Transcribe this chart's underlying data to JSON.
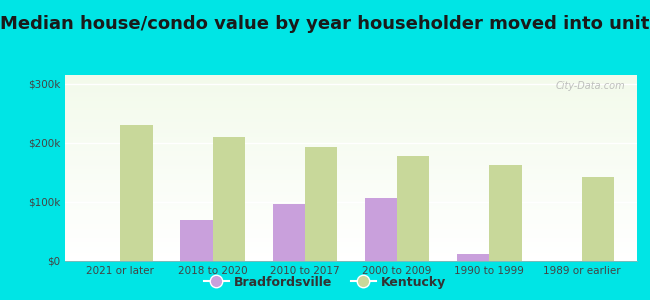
{
  "title": "Median house/condo value by year householder moved into unit",
  "categories": [
    "2021 or later",
    "2018 to 2020",
    "2010 to 2017",
    "2000 to 2009",
    "1990 to 1999",
    "1989 or earlier"
  ],
  "bradfordsville": [
    0,
    70000,
    97000,
    107000,
    12000,
    0
  ],
  "kentucky": [
    230000,
    210000,
    193000,
    178000,
    163000,
    143000
  ],
  "bradfordsville_color": "#c9a0dc",
  "kentucky_color": "#c8d89a",
  "background_color": "#00e5e5",
  "ylabel_ticks": [
    0,
    100000,
    200000,
    300000
  ],
  "ylabel_labels": [
    "$0",
    "$100k",
    "$200k",
    "$300k"
  ],
  "ylim": [
    0,
    315000
  ],
  "legend_bradfordsville": "Bradfordsville",
  "legend_kentucky": "Kentucky",
  "watermark": "City-Data.com",
  "bar_width": 0.35,
  "title_fontsize": 13,
  "tick_fontsize": 7.5,
  "legend_fontsize": 9
}
